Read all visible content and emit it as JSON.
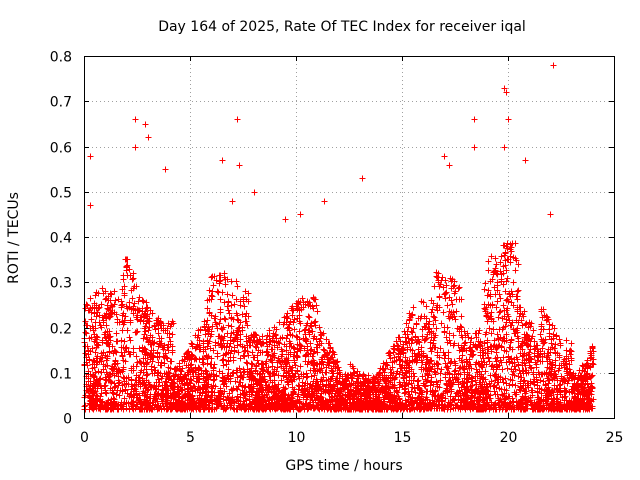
{
  "chart_data": {
    "type": "scatter",
    "title": "Day 164 of 2025, Rate Of TEC Index for receiver iqal",
    "xlabel": "GPS time / hours",
    "ylabel": "ROTI / TECUs",
    "xlim": [
      0,
      25
    ],
    "ylim": [
      0,
      0.8
    ],
    "xticks": [
      "0",
      "5",
      "10",
      "15",
      "20",
      "25"
    ],
    "yticks": [
      "0",
      "0.1",
      "0.2",
      "0.3",
      "0.4",
      "0.5",
      "0.6",
      "0.7",
      "0.8"
    ],
    "grid": true,
    "legend": "none",
    "marker": "plus",
    "color": "#ff0000",
    "x_range_of_data": [
      0,
      24
    ],
    "typical_y_range": [
      0.02,
      0.3
    ],
    "notable_points": [
      {
        "x": 0.3,
        "y": 0.58
      },
      {
        "x": 0.3,
        "y": 0.47
      },
      {
        "x": 2.4,
        "y": 0.66
      },
      {
        "x": 2.4,
        "y": 0.6
      },
      {
        "x": 2.9,
        "y": 0.65
      },
      {
        "x": 3.0,
        "y": 0.62
      },
      {
        "x": 3.8,
        "y": 0.55
      },
      {
        "x": 6.5,
        "y": 0.57
      },
      {
        "x": 7.2,
        "y": 0.66
      },
      {
        "x": 7.3,
        "y": 0.56
      },
      {
        "x": 7.0,
        "y": 0.48
      },
      {
        "x": 8.0,
        "y": 0.5
      },
      {
        "x": 9.5,
        "y": 0.44
      },
      {
        "x": 10.2,
        "y": 0.45
      },
      {
        "x": 11.3,
        "y": 0.48
      },
      {
        "x": 13.1,
        "y": 0.53
      },
      {
        "x": 17.0,
        "y": 0.58
      },
      {
        "x": 17.2,
        "y": 0.56
      },
      {
        "x": 18.4,
        "y": 0.66
      },
      {
        "x": 18.4,
        "y": 0.6
      },
      {
        "x": 19.8,
        "y": 0.73
      },
      {
        "x": 19.9,
        "y": 0.72
      },
      {
        "x": 20.0,
        "y": 0.66
      },
      {
        "x": 19.8,
        "y": 0.6
      },
      {
        "x": 20.8,
        "y": 0.57
      },
      {
        "x": 22.1,
        "y": 0.78
      },
      {
        "x": 22.0,
        "y": 0.45
      }
    ]
  }
}
